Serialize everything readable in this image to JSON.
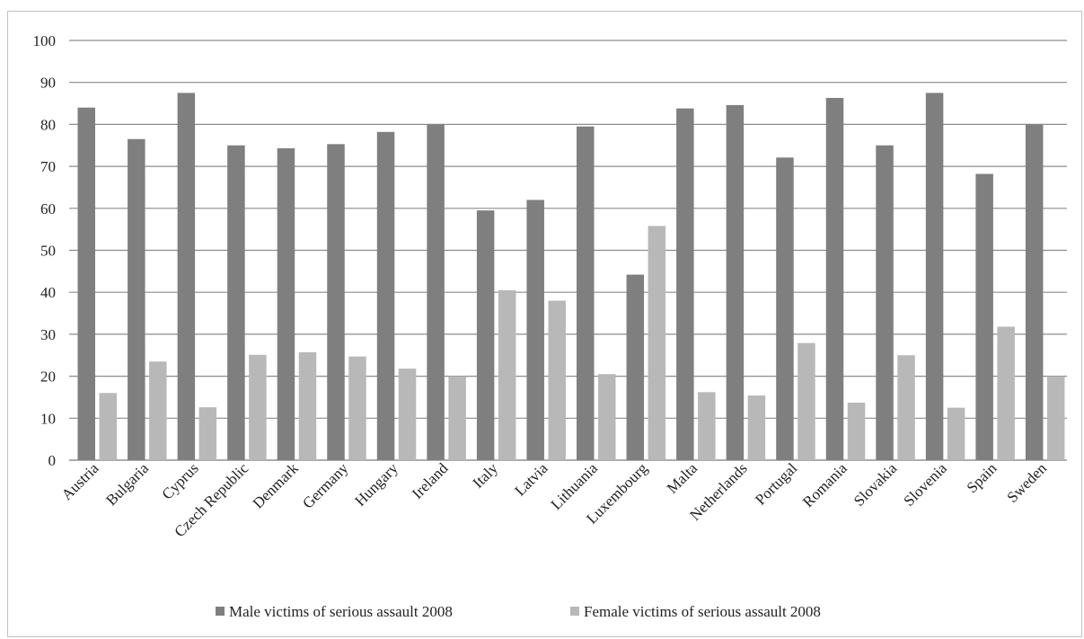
{
  "chart_data": {
    "type": "bar",
    "title": "",
    "xlabel": "",
    "ylabel": "",
    "ylim": [
      0,
      100
    ],
    "yticks": [
      0,
      10,
      20,
      30,
      40,
      50,
      60,
      70,
      80,
      90,
      100
    ],
    "grid": true,
    "legend_position": "bottom",
    "categories": [
      "Austria",
      "Bulgaria",
      "Cyprus",
      "Czech Republic",
      "Denmark",
      "Germany",
      "Hungary",
      "Ireland",
      "Italy",
      "Latvia",
      "Lithuania",
      "Luxembourg",
      "Malta",
      "Netherlands",
      "Portugal",
      "Romania",
      "Slovakia",
      "Slovenia",
      "Spain",
      "Sweden"
    ],
    "series": [
      {
        "name": "Male victims of serious assault 2008",
        "color": "#7f7f7f",
        "values": [
          84,
          76.5,
          87.5,
          75,
          74.3,
          75.3,
          78.2,
          80,
          59.5,
          62,
          79.5,
          44.2,
          83.8,
          84.6,
          72.1,
          86.3,
          75,
          87.5,
          68.2,
          80
        ]
      },
      {
        "name": "Female victims of serious assault 2008",
        "color": "#b8b8b8",
        "values": [
          16,
          23.5,
          12.6,
          25.1,
          25.7,
          24.7,
          21.8,
          20,
          40.5,
          38,
          20.5,
          55.8,
          16.2,
          15.4,
          27.9,
          13.7,
          25,
          12.5,
          31.8,
          20
        ]
      }
    ]
  }
}
